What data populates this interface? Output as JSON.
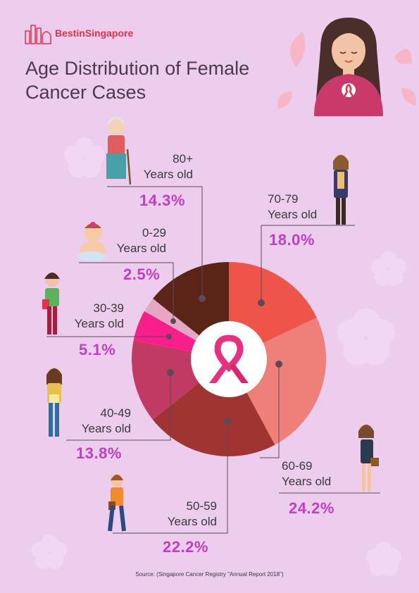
{
  "brand": {
    "name_part1": "Best",
    "name_part2": "in",
    "name_part3": "Singapore"
  },
  "title": {
    "line1": "Age Distribution of Female",
    "line2": "Cancer Cases"
  },
  "source": "Source: (Singapore Cancer Registry \"Annual Report 2018\")",
  "colors": {
    "background": "#eccdee",
    "accent_percent": "#c13fc2",
    "slice_70_79": "#ef5449",
    "slice_60_69": "#ef7f79",
    "slice_50_59": "#a03430",
    "slice_40_49": "#c13a63",
    "slice_30_39": "#f81f8a",
    "slice_0_29": "#e8a6c6",
    "slice_80_plus": "#5a2516"
  },
  "labels": {
    "age_80": {
      "range": "80+",
      "unit": "Years old",
      "pct": "14.3%"
    },
    "age_0_29": {
      "range": "0-29",
      "unit": "Years old",
      "pct": "2.5%"
    },
    "age_30_39": {
      "range": "30-39",
      "unit": "Years old",
      "pct": "5.1%"
    },
    "age_40_49": {
      "range": "40-49",
      "unit": "Years old",
      "pct": "13.8%"
    },
    "age_50_59": {
      "range": "50-59",
      "unit": "Years old",
      "pct": "22.2%"
    },
    "age_60_69": {
      "range": "60-69",
      "unit": "Years old",
      "pct": "24.2%"
    },
    "age_70_79": {
      "range": "70-79",
      "unit": "Years old",
      "pct": "18.0%"
    }
  },
  "icons": [
    "ribbon-icon",
    "woman-illustration",
    "flower-decoration"
  ],
  "chart_data": {
    "type": "pie",
    "title": "Age Distribution of Female Cancer Cases",
    "categories": [
      "70-79",
      "60-69",
      "50-59",
      "40-49",
      "30-39",
      "0-29",
      "80+"
    ],
    "values": [
      18.0,
      24.2,
      22.2,
      13.8,
      5.1,
      2.5,
      14.3
    ],
    "unit": "%",
    "colors": [
      "#ef5449",
      "#ef7f79",
      "#a03430",
      "#c13a63",
      "#f81f8a",
      "#e8a6c6",
      "#5a2516"
    ],
    "start": "12 o'clock",
    "direction": "clockwise",
    "center_icon": "ribbon-icon"
  }
}
